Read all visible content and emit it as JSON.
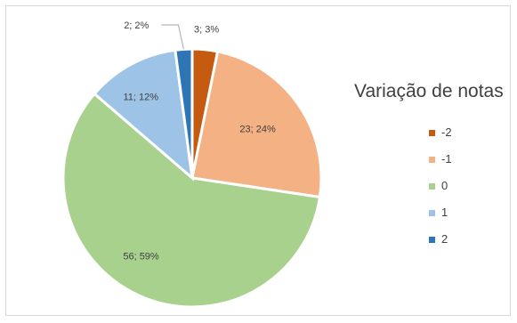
{
  "chart_data": {
    "type": "pie",
    "legend_title": "Variação de notas",
    "legend_position": "right",
    "categories": [
      "-2",
      "-1",
      "0",
      "1",
      "2"
    ],
    "values": [
      3,
      23,
      56,
      11,
      2
    ],
    "percentages": [
      3,
      24,
      59,
      12,
      2
    ],
    "data_labels": [
      "3; 3%",
      "23; 24%",
      "56; 59%",
      "11; 12%",
      "2; 2%"
    ],
    "colors": [
      "#c55a11",
      "#f4b183",
      "#a9d18e",
      "#9dc3e6",
      "#2e75b6"
    ]
  }
}
